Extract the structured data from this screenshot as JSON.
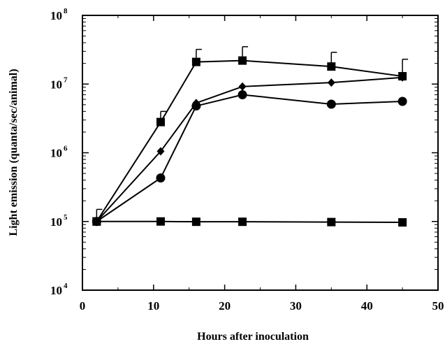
{
  "chart_data": {
    "type": "line",
    "title": "",
    "xlabel": "Hours after inoculation",
    "ylabel": "Light emission (quanta/sec/animal)",
    "xlim": [
      0,
      50
    ],
    "ylim": [
      10000,
      100000000
    ],
    "y_scale": "log",
    "grid": false,
    "legend": "none",
    "x_ticks": [
      0,
      10,
      20,
      30,
      40,
      50
    ],
    "y_ticks": [
      {
        "value": 10000,
        "base": "10",
        "exp": "4"
      },
      {
        "value": 100000,
        "base": "10",
        "exp": "5"
      },
      {
        "value": 1000000,
        "base": "10",
        "exp": "6"
      },
      {
        "value": 10000000,
        "base": "10",
        "exp": "7"
      },
      {
        "value": 100000000,
        "base": "10",
        "exp": "8"
      }
    ],
    "series": [
      {
        "marker": "square",
        "x": [
          2,
          11,
          16,
          22.5,
          35,
          45
        ],
        "y": [
          100000,
          2800000,
          21000000,
          22000000,
          18000000,
          13000000
        ],
        "y_err_upper": [
          150000,
          4000000,
          32000000,
          35000000,
          29000000,
          23000000
        ]
      },
      {
        "marker": "diamond",
        "x": [
          2,
          11,
          16,
          22.5,
          35,
          45
        ],
        "y": [
          100000,
          1050000,
          5300000,
          9200000,
          10500000,
          12500000
        ]
      },
      {
        "marker": "circle",
        "x": [
          2,
          11,
          16,
          22.5,
          35,
          45
        ],
        "y": [
          100000,
          430000,
          4800000,
          7000000,
          5100000,
          5600000
        ]
      },
      {
        "marker": "square",
        "x": [
          2,
          11,
          16,
          22.5,
          35,
          45
        ],
        "y": [
          100000,
          100000,
          99000,
          99000,
          98000,
          97000
        ]
      }
    ]
  }
}
